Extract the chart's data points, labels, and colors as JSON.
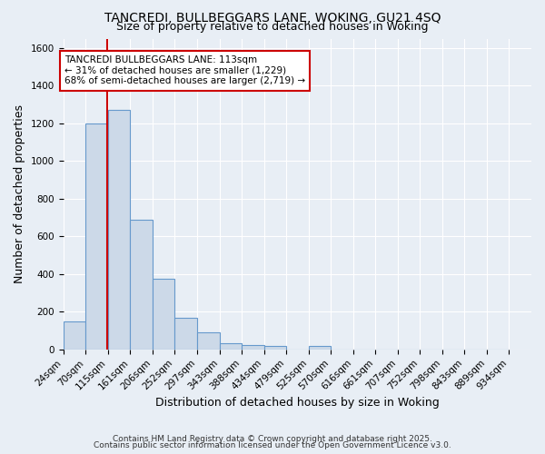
{
  "title1": "TANCREDI, BULLBEGGARS LANE, WOKING, GU21 4SQ",
  "title2": "Size of property relative to detached houses in Woking",
  "xlabel": "Distribution of detached houses by size in Woking",
  "ylabel": "Number of detached properties",
  "bin_edges": [
    24,
    70,
    115,
    161,
    206,
    252,
    297,
    343,
    388,
    434,
    479,
    525,
    570,
    616,
    661,
    707,
    752,
    798,
    843,
    889,
    934
  ],
  "counts": [
    148,
    1200,
    1270,
    690,
    375,
    170,
    92,
    32,
    25,
    20,
    0,
    18,
    0,
    0,
    0,
    0,
    0,
    0,
    0,
    0
  ],
  "bar_color": "#ccd9e8",
  "bar_edge_color": "#6699cc",
  "vline_x": 113,
  "vline_color": "#cc0000",
  "annotation_text": "TANCREDI BULLBEGGARS LANE: 113sqm\n← 31% of detached houses are smaller (1,229)\n68% of semi-detached houses are larger (2,719) →",
  "annotation_box_facecolor": "#ffffff",
  "annotation_box_edgecolor": "#cc0000",
  "ylim": [
    0,
    1650
  ],
  "yticks": [
    0,
    200,
    400,
    600,
    800,
    1000,
    1200,
    1400,
    1600
  ],
  "background_color": "#e8eef5",
  "grid_color": "#ffffff",
  "footnote1": "Contains HM Land Registry data © Crown copyright and database right 2025.",
  "footnote2": "Contains public sector information licensed under the Open Government Licence v3.0.",
  "title1_fontsize": 10,
  "title2_fontsize": 9,
  "xlabel_fontsize": 9,
  "ylabel_fontsize": 9,
  "tick_fontsize": 7.5,
  "annotation_fontsize": 7.5,
  "footnote_fontsize": 6.5
}
